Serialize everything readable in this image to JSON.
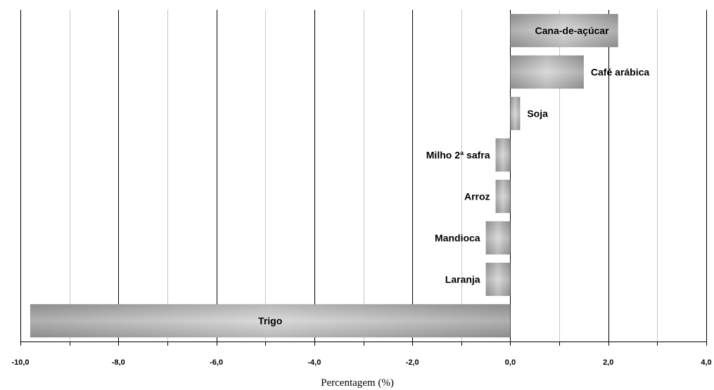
{
  "chart_data": {
    "type": "bar",
    "orientation": "horizontal",
    "categories": [
      "Cana-de-açúcar",
      "Café arábica",
      "Soja",
      "Milho 2ª safra",
      "Arroz",
      "Mandioca",
      "Laranja",
      "Trigo"
    ],
    "values": [
      2.2,
      1.5,
      0.2,
      -0.3,
      -0.3,
      -0.5,
      -0.5,
      -9.8
    ],
    "xlabel": "Percentagem (%)",
    "ylabel": "",
    "xlim": [
      -10,
      4
    ],
    "xticks": [
      "-10,0",
      "-8,0",
      "-6,0",
      "-4,0",
      "-2,0",
      "0,0",
      "2,0",
      "4,0"
    ],
    "grid": true,
    "legend": false,
    "colors": {
      "bar_edge": "#8c8c8c",
      "bar_center": "#d6d6d6",
      "major_grid": "#000000",
      "minor_grid": "#b8b8b8"
    }
  }
}
